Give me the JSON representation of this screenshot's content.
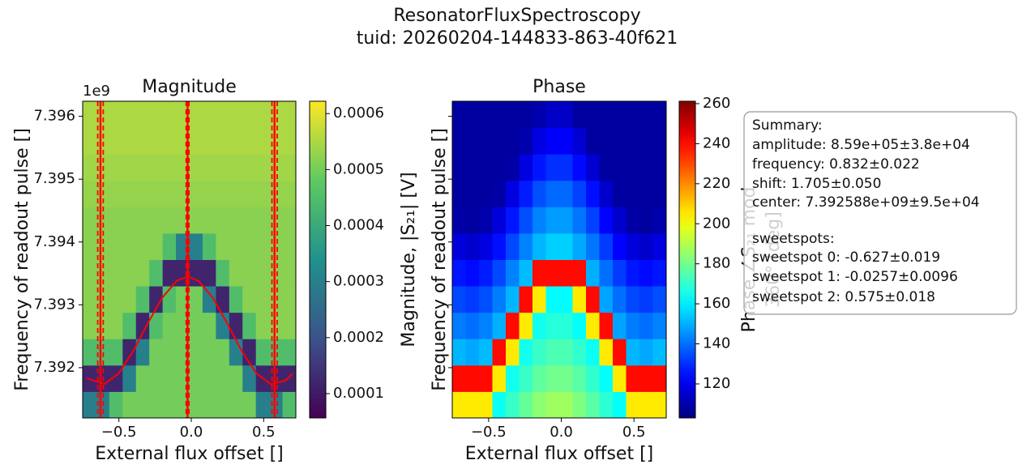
{
  "figure": {
    "title": "ResonatorFluxSpectroscopy",
    "subtitle": "tuid: 20260204-144833-863-40f621"
  },
  "chart_data": [
    {
      "type": "heatmap",
      "title": "Magnitude",
      "xlabel": "External flux offset []",
      "ylabel": "Frequency of readout pulse []",
      "y_offset_text": "1e9",
      "xlim": [
        -0.75,
        0.722
      ],
      "ylim": [
        7391200000,
        7396240000
      ],
      "xticks": [
        {
          "value": -0.5,
          "label": "−0.5"
        },
        {
          "value": 0,
          "label": "0.0"
        },
        {
          "value": 0.5,
          "label": "0.5"
        }
      ],
      "yticks": [
        {
          "value": 7392000000,
          "label": "7.392"
        },
        {
          "value": 7393000000,
          "label": "7.393"
        },
        {
          "value": 7394000000,
          "label": "7.394"
        },
        {
          "value": 7395000000,
          "label": "7.395"
        },
        {
          "value": 7396000000,
          "label": "7.396"
        }
      ],
      "xbins": [
        -0.75,
        -0.658,
        -0.566,
        -0.474,
        -0.382,
        -0.29,
        -0.198,
        -0.106,
        -0.014,
        0.078,
        0.17,
        0.262,
        0.354,
        0.446,
        0.538,
        0.63,
        0.722
      ],
      "ybins": [
        7391200000,
        7391620000,
        7392040000,
        7392460000,
        7392880000,
        7393300000,
        7393720000,
        7394140000,
        7394560000,
        7394980000,
        7395400000,
        7395820000,
        7396240000
      ],
      "z": [
        [
          0.0003,
          0.0003,
          0.00045,
          0.0005,
          0.0005,
          0.0005,
          0.0005,
          0.0005,
          0.0005,
          0.0005,
          0.0005,
          0.0005,
          0.0005,
          0.0003,
          0.0003,
          0.00045
        ],
        [
          0.00012,
          0.00012,
          0.00012,
          0.0003,
          0.0005,
          0.0005,
          0.0005,
          0.0005,
          0.0005,
          0.0005,
          0.0005,
          0.0005,
          0.0003,
          0.00012,
          0.00012,
          0.00012
        ],
        [
          0.00045,
          0.00045,
          0.00045,
          0.00012,
          0.0003,
          0.0005,
          0.0005,
          0.0005,
          0.0005,
          0.0005,
          0.0005,
          0.0003,
          0.00012,
          0.00045,
          0.00045,
          0.00045
        ],
        [
          0.00052,
          0.00052,
          0.00052,
          0.00045,
          0.00012,
          0.00045,
          0.0005,
          0.0005,
          0.0005,
          0.0005,
          0.0003,
          0.00012,
          0.00045,
          0.00052,
          0.00052,
          0.00052
        ],
        [
          0.00052,
          0.00052,
          0.00052,
          0.00052,
          0.00045,
          0.00012,
          0.00045,
          0.0005,
          0.0005,
          0.0003,
          0.00012,
          0.00045,
          0.00052,
          0.00052,
          0.00052,
          0.00052
        ],
        [
          0.00052,
          0.00052,
          0.00052,
          0.00052,
          0.00052,
          0.00045,
          0.00012,
          0.00012,
          0.00012,
          0.00012,
          0.00045,
          0.00052,
          0.00052,
          0.00052,
          0.00052,
          0.00052
        ],
        [
          0.00052,
          0.00052,
          0.00052,
          0.00052,
          0.00052,
          0.00052,
          0.00045,
          0.0003,
          0.0003,
          0.00045,
          0.00052,
          0.00052,
          0.00052,
          0.00052,
          0.00052,
          0.00052
        ],
        [
          0.00052,
          0.00052,
          0.00052,
          0.00052,
          0.00052,
          0.00052,
          0.00052,
          0.00052,
          0.00052,
          0.00052,
          0.00052,
          0.00052,
          0.00052,
          0.00052,
          0.00052,
          0.00052
        ],
        [
          0.00053,
          0.00053,
          0.00053,
          0.00053,
          0.00053,
          0.00053,
          0.00053,
          0.00053,
          0.00053,
          0.00053,
          0.00053,
          0.00053,
          0.00053,
          0.00053,
          0.00053,
          0.00053
        ],
        [
          0.00054,
          0.00054,
          0.00054,
          0.00054,
          0.00054,
          0.00054,
          0.00054,
          0.00054,
          0.00054,
          0.00054,
          0.00054,
          0.00054,
          0.00054,
          0.00054,
          0.00054,
          0.00054
        ],
        [
          0.00055,
          0.00055,
          0.00055,
          0.00055,
          0.00055,
          0.00055,
          0.00055,
          0.00055,
          0.00055,
          0.00055,
          0.00055,
          0.00055,
          0.00055,
          0.00055,
          0.00055,
          0.00055
        ],
        [
          0.00055,
          0.00055,
          0.00055,
          0.00055,
          0.00055,
          0.00055,
          0.00055,
          0.00055,
          0.00055,
          0.00055,
          0.00055,
          0.00055,
          0.00055,
          0.00055,
          0.00055,
          0.00055
        ]
      ],
      "colormap": "viridis",
      "clim": [
        5.66e-05,
        0.000622
      ],
      "cticks": [
        0.0001,
        0.0002,
        0.0003,
        0.0004,
        0.0005,
        0.0006
      ],
      "colorbar_label": [
        "Magnitude, |S₂₁| [V]"
      ],
      "lines": [
        {
          "color": "#ff0000",
          "x": [
            -0.72,
            -0.6,
            -0.5,
            -0.4,
            -0.3,
            -0.2,
            -0.1,
            -0.026,
            0.05,
            0.15,
            0.25,
            0.35,
            0.45,
            0.55,
            0.65,
            0.7
          ],
          "y": [
            7391829000,
            7391738000,
            7391912000,
            7392266000,
            7392707000,
            7393115000,
            7393383000,
            7393447000,
            7393380000,
            7393109000,
            7392697000,
            7392257000,
            7391907000,
            7391737000,
            7391793000,
            7391904000
          ]
        }
      ],
      "vlines": {
        "color": "#ff0000",
        "values": [
          -0.627,
          -0.0257,
          0.575
        ],
        "errors": [
          0.019,
          0.0096,
          0.018
        ]
      }
    },
    {
      "type": "heatmap",
      "title": "Phase",
      "xlabel": "External flux offset []",
      "ylabel": "Frequency of readout pulse []",
      "xlim": [
        -0.75,
        0.722
      ],
      "ylim": [
        7391200000,
        7396240000
      ],
      "xticks": [
        {
          "value": -0.5,
          "label": "−0.5"
        },
        {
          "value": 0,
          "label": "0.0"
        },
        {
          "value": 0.5,
          "label": "0.5"
        }
      ],
      "yticks": [
        7392000000,
        7393000000,
        7394000000,
        7395000000,
        7396000000
      ],
      "xbins": [
        -0.75,
        -0.658,
        -0.566,
        -0.474,
        -0.382,
        -0.29,
        -0.198,
        -0.106,
        -0.014,
        0.078,
        0.17,
        0.262,
        0.354,
        0.446,
        0.538,
        0.63,
        0.722
      ],
      "ybins": [
        7391200000,
        7391620000,
        7392040000,
        7392460000,
        7392880000,
        7393300000,
        7393720000,
        7394140000,
        7394560000,
        7394980000,
        7395400000,
        7395820000,
        7396240000
      ],
      "z": [
        [
          205,
          205,
          205,
          164,
          171,
          178,
          184,
          187,
          187,
          182,
          176,
          169,
          163,
          205,
          205,
          205
        ],
        [
          240,
          240,
          240,
          205,
          165,
          171,
          177,
          180,
          180,
          176,
          170,
          163,
          205,
          240,
          240,
          240
        ],
        [
          151,
          149,
          152,
          240,
          205,
          165,
          171,
          174,
          174,
          170,
          164,
          205,
          240,
          151,
          149,
          152
        ],
        [
          142,
          140,
          143,
          150,
          240,
          205,
          165,
          168,
          168,
          163,
          205,
          240,
          148,
          142,
          140,
          143
        ],
        [
          134,
          132,
          135,
          142,
          151,
          240,
          205,
          162,
          162,
          205,
          240,
          148,
          140,
          134,
          132,
          135
        ],
        [
          126,
          124,
          127,
          134,
          143,
          152,
          240,
          240,
          240,
          240,
          150,
          140,
          132,
          126,
          124,
          126
        ],
        [
          117,
          115,
          118,
          125,
          134,
          143,
          151,
          155,
          155,
          149,
          141,
          132,
          123,
          117,
          115,
          118
        ],
        [
          109,
          108,
          110,
          117,
          126,
          135,
          143,
          147,
          147,
          141,
          133,
          123,
          115,
          109,
          108,
          110
        ],
        [
          108,
          108,
          108,
          109,
          118,
          127,
          135,
          139,
          139,
          133,
          125,
          115,
          108,
          108,
          108,
          108
        ],
        [
          108,
          108,
          108,
          108,
          109,
          118,
          126,
          130,
          130,
          124,
          116,
          108,
          108,
          108,
          108,
          108
        ],
        [
          108,
          108,
          108,
          108,
          108,
          110,
          118,
          122,
          122,
          116,
          108,
          108,
          108,
          108,
          108,
          108
        ],
        [
          108,
          108,
          108,
          108,
          108,
          108,
          110,
          114,
          114,
          108,
          108,
          108,
          108,
          108,
          108,
          108
        ]
      ],
      "colormap": "jet",
      "clim": [
        103,
        261.2
      ],
      "cticks": [
        120,
        140,
        160,
        180,
        200,
        220,
        240,
        260
      ],
      "colorbar_label": [
        "Phase ∠S₂₁ mod",
        "360° [deg]"
      ]
    }
  ],
  "summary": {
    "heading": "Summary:",
    "fit": [
      "amplitude: 8.59e+05±3.8e+04",
      "frequency: 0.832±0.022",
      "shift: 1.705±0.050",
      "center: 7.392588e+09±9.5e+04"
    ],
    "sweetspots_heading": "sweetspots:",
    "sweetspots": [
      "sweetspot 0: -0.627±0.019",
      "sweetspot 1: -0.0257±0.0096",
      "sweetspot 2: 0.575±0.018"
    ]
  }
}
